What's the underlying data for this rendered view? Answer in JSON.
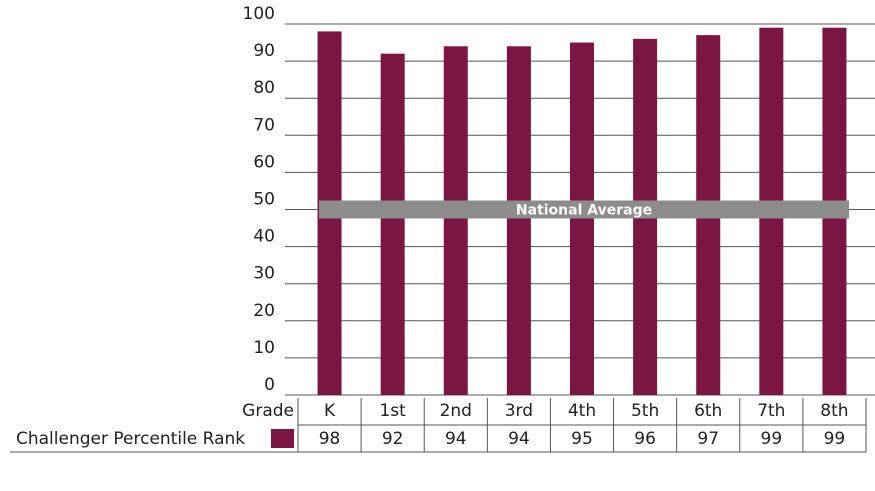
{
  "chart_data": {
    "type": "bar",
    "categories": [
      "K",
      "1st",
      "2nd",
      "3rd",
      "4th",
      "5th",
      "6th",
      "7th",
      "8th"
    ],
    "category_header": "Grade",
    "series": [
      {
        "name": "Challenger Percentile Rank",
        "color": "#7b1642",
        "values": [
          98,
          92,
          94,
          94,
          95,
          96,
          97,
          99,
          99
        ]
      }
    ],
    "ylim": [
      0,
      100
    ],
    "yticks": [
      0,
      10,
      20,
      30,
      40,
      50,
      60,
      70,
      80,
      90,
      100
    ],
    "grid": true,
    "reference_band": {
      "label": "National Average",
      "value": 50,
      "color": "#8c8c8c"
    }
  }
}
